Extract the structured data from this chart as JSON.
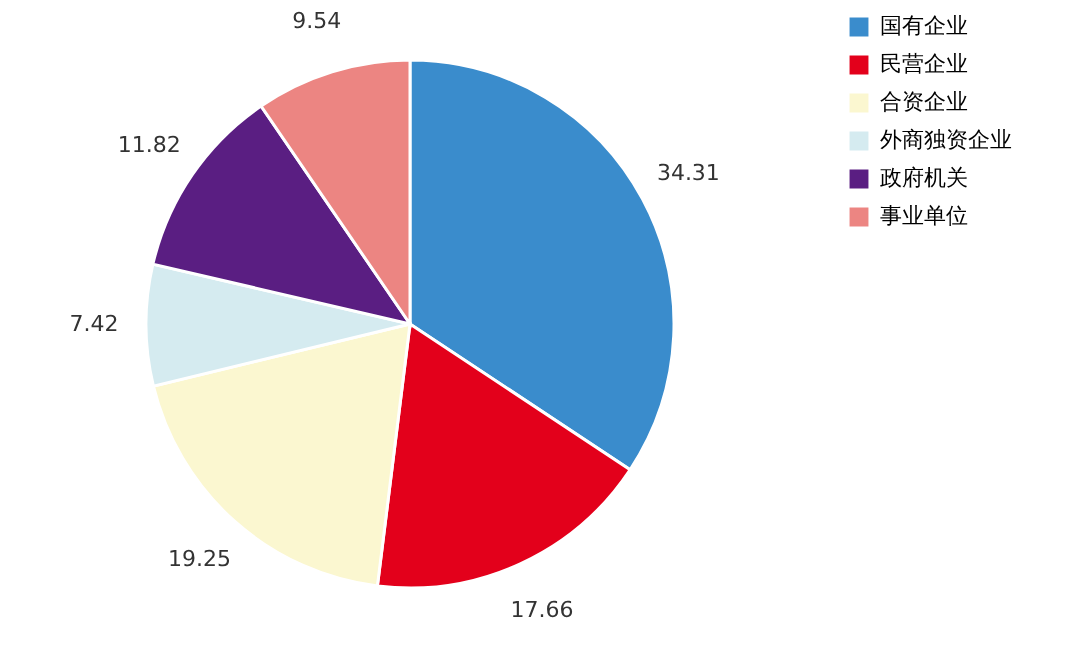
{
  "chart_data": {
    "type": "pie",
    "categories": [
      "国有企业",
      "民营企业",
      "合资企业",
      "外商独资企业",
      "政府机关",
      "事业单位"
    ],
    "values": [
      34.31,
      17.66,
      19.25,
      7.42,
      11.82,
      9.54
    ],
    "colors": [
      "#3a8ccc",
      "#e3001b",
      "#fbf7d0",
      "#d5ebf0",
      "#5a1e82",
      "#ec8582"
    ],
    "data_labels": true,
    "legend": "right"
  }
}
